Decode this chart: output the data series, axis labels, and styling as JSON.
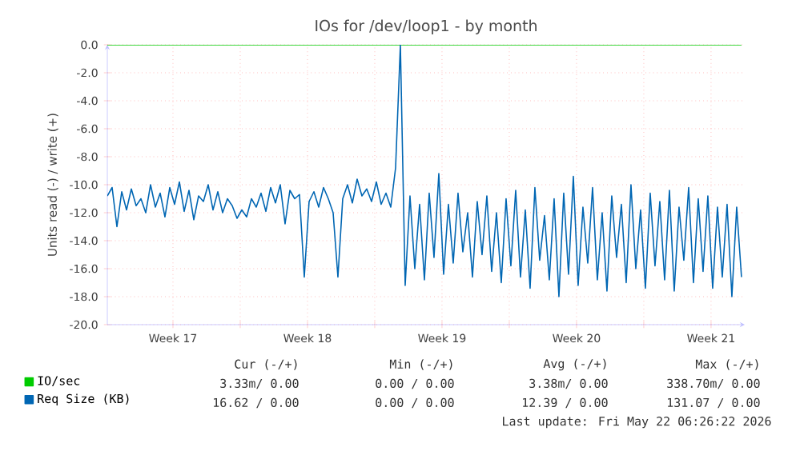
{
  "chart_data": {
    "type": "line",
    "title": "IOs for /dev/loop1 - by month",
    "ylabel": "Units read (-) / write (+)",
    "xlim": [
      "2026-04-20T02:00",
      "2026-05-23T06:05"
    ],
    "ylim": [
      -20,
      0
    ],
    "xticks": [
      {
        "value": "2026-04-23T12:00",
        "label": "Week 17"
      },
      {
        "value": "2026-04-27T00:00",
        "label": null
      },
      {
        "value": "2026-04-30T12:00",
        "label": "Week 18"
      },
      {
        "value": "2026-05-04T00:00",
        "label": null
      },
      {
        "value": "2026-05-07T12:00",
        "label": "Week 19"
      },
      {
        "value": "2026-05-11T00:00",
        "label": null
      },
      {
        "value": "2026-05-14T12:00",
        "label": "Week 20"
      },
      {
        "value": "2026-05-18T00:00",
        "label": null
      },
      {
        "value": "2026-05-21T12:00",
        "label": "Week 21"
      }
    ],
    "yticks": [
      {
        "value": -20,
        "label": "-20.0"
      },
      {
        "value": -18,
        "label": "-18.0"
      },
      {
        "value": -16,
        "label": "-16.0"
      },
      {
        "value": -14,
        "label": "-14.0"
      },
      {
        "value": -12,
        "label": "-12.0"
      },
      {
        "value": -10,
        "label": "-10.0"
      },
      {
        "value": -8,
        "label": "-8.0"
      },
      {
        "value": -6,
        "label": "-6.0"
      },
      {
        "value": -4,
        "label": "-4.0"
      },
      {
        "value": -2,
        "label": "-2.0"
      },
      {
        "value": 0,
        "label": "0.0"
      }
    ],
    "grid": true,
    "legend": "bottom",
    "x": [
      "2026-04-20T02:00",
      "2026-04-20T08:00",
      "2026-04-20T14:00",
      "2026-04-20T20:00",
      "2026-04-21T02:00",
      "2026-04-21T08:00",
      "2026-04-21T14:00",
      "2026-04-21T20:00",
      "2026-04-22T02:00",
      "2026-04-22T08:00",
      "2026-04-22T14:00",
      "2026-04-22T20:00",
      "2026-04-23T02:00",
      "2026-04-23T08:00",
      "2026-04-23T14:00",
      "2026-04-23T20:00",
      "2026-04-24T02:00",
      "2026-04-24T08:00",
      "2026-04-24T14:00",
      "2026-04-24T20:00",
      "2026-04-25T02:00",
      "2026-04-25T08:00",
      "2026-04-25T14:00",
      "2026-04-25T20:00",
      "2026-04-26T02:00",
      "2026-04-26T08:00",
      "2026-04-26T14:00",
      "2026-04-26T20:00",
      "2026-04-27T02:00",
      "2026-04-27T08:00",
      "2026-04-27T14:00",
      "2026-04-27T20:00",
      "2026-04-28T02:00",
      "2026-04-28T08:00",
      "2026-04-28T14:00",
      "2026-04-28T20:00",
      "2026-04-29T02:00",
      "2026-04-29T08:00",
      "2026-04-29T14:00",
      "2026-04-29T20:00",
      "2026-04-30T02:00",
      "2026-04-30T08:00",
      "2026-04-30T14:00",
      "2026-04-30T20:00",
      "2026-05-01T02:00",
      "2026-05-01T08:00",
      "2026-05-01T14:00",
      "2026-05-01T20:00",
      "2026-05-02T02:00",
      "2026-05-02T08:00",
      "2026-05-02T14:00",
      "2026-05-02T20:00",
      "2026-05-03T02:00",
      "2026-05-03T08:00",
      "2026-05-03T14:00",
      "2026-05-03T20:00",
      "2026-05-04T02:00",
      "2026-05-04T08:00",
      "2026-05-04T14:00",
      "2026-05-04T20:00",
      "2026-05-05T02:00",
      "2026-05-05T08:00",
      "2026-05-05T14:00",
      "2026-05-05T20:00",
      "2026-05-06T02:00",
      "2026-05-06T08:00",
      "2026-05-06T14:00",
      "2026-05-06T20:00",
      "2026-05-07T02:00",
      "2026-05-07T08:00",
      "2026-05-07T14:00",
      "2026-05-07T20:00",
      "2026-05-08T02:00",
      "2026-05-08T08:00",
      "2026-05-08T14:00",
      "2026-05-08T20:00",
      "2026-05-09T02:00",
      "2026-05-09T08:00",
      "2026-05-09T14:00",
      "2026-05-09T20:00",
      "2026-05-10T02:00",
      "2026-05-10T08:00",
      "2026-05-10T14:00",
      "2026-05-10T20:00",
      "2026-05-11T02:00",
      "2026-05-11T08:00",
      "2026-05-11T14:00",
      "2026-05-11T20:00",
      "2026-05-12T02:00",
      "2026-05-12T08:00",
      "2026-05-12T14:00",
      "2026-05-12T20:00",
      "2026-05-13T02:00",
      "2026-05-13T08:00",
      "2026-05-13T14:00",
      "2026-05-13T20:00",
      "2026-05-14T02:00",
      "2026-05-14T08:00",
      "2026-05-14T14:00",
      "2026-05-14T20:00",
      "2026-05-15T02:00",
      "2026-05-15T08:00",
      "2026-05-15T14:00",
      "2026-05-15T20:00",
      "2026-05-16T02:00",
      "2026-05-16T08:00",
      "2026-05-16T14:00",
      "2026-05-16T20:00",
      "2026-05-17T02:00",
      "2026-05-17T08:00",
      "2026-05-17T14:00",
      "2026-05-17T20:00",
      "2026-05-18T02:00",
      "2026-05-18T08:00",
      "2026-05-18T14:00",
      "2026-05-18T20:00",
      "2026-05-19T02:00",
      "2026-05-19T08:00",
      "2026-05-19T14:00",
      "2026-05-19T20:00",
      "2026-05-20T02:00",
      "2026-05-20T08:00",
      "2026-05-20T14:00",
      "2026-05-20T20:00",
      "2026-05-21T02:00",
      "2026-05-21T08:00",
      "2026-05-21T14:00",
      "2026-05-21T20:00",
      "2026-05-22T02:00",
      "2026-05-22T08:00",
      "2026-05-22T14:00",
      "2026-05-22T20:00",
      "2026-05-23T02:00"
    ],
    "series": [
      {
        "name": "IO/sec",
        "color": "#00cc00",
        "x": [
          "2026-04-20T02:00",
          "2026-05-23T02:00"
        ],
        "values": [
          0,
          0
        ]
      },
      {
        "name": "Req Size (KB)",
        "color": "#0066b3",
        "values": [
          -10.8,
          -10.2,
          -13.0,
          -10.5,
          -11.8,
          -10.3,
          -11.5,
          -11.0,
          -12.0,
          -10.0,
          -11.6,
          -10.6,
          -12.3,
          -10.2,
          -11.4,
          -9.8,
          -11.9,
          -10.4,
          -12.5,
          -10.8,
          -11.2,
          -10.0,
          -11.8,
          -10.5,
          -12.0,
          -11.0,
          -11.5,
          -12.4,
          -11.8,
          -12.3,
          -11.0,
          -11.6,
          -10.6,
          -11.9,
          -10.2,
          -11.3,
          -10.0,
          -12.8,
          -10.4,
          -11.0,
          -10.7,
          -16.6,
          -11.2,
          -10.5,
          -11.6,
          -10.2,
          -11.0,
          -12.0,
          -16.6,
          -11.0,
          -10.0,
          -11.3,
          -9.6,
          -10.8,
          -10.3,
          -11.2,
          -9.8,
          -11.4,
          -10.6,
          -11.6,
          -8.8,
          0,
          -17.2,
          -10.8,
          -16.0,
          -11.4,
          -16.8,
          -10.6,
          -15.2,
          -9.2,
          -16.4,
          -11.4,
          -15.6,
          -10.6,
          -14.8,
          -12.0,
          -16.6,
          -11.2,
          -15.0,
          -10.8,
          -16.2,
          -12.0,
          -17.0,
          -11.0,
          -15.8,
          -10.4,
          -16.6,
          -11.8,
          -17.4,
          -10.2,
          -15.4,
          -12.2,
          -16.8,
          -11.0,
          -18.0,
          -10.6,
          -16.4,
          -9.4,
          -17.2,
          -11.6,
          -15.6,
          -10.2,
          -16.8,
          -12.0,
          -17.6,
          -10.8,
          -15.2,
          -11.4,
          -17.0,
          -10.0,
          -16.0,
          -11.8,
          -17.4,
          -10.6,
          -15.8,
          -11.2,
          -16.8,
          -10.4,
          -17.6,
          -11.6,
          -15.4,
          -10.2,
          -17.0,
          -11.0,
          -16.2,
          -10.8,
          -17.4,
          -11.6,
          -16.6,
          -11.4,
          -18.0,
          -11.6,
          -16.6
        ]
      }
    ],
    "annotations": [
      "Cur (-/+)",
      "Min (-/+)",
      "Avg (-/+)",
      "Max (-/+)",
      "3.33m/ 0.00",
      "0.00 / 0.00",
      "3.38m/ 0.00",
      "338.70m/ 0.00",
      "16.62 / 0.00",
      "0.00 / 0.00",
      "12.39 / 0.00",
      "131.07 / 0.00",
      "Last update: Fri May 22 06:26:22 2026"
    ]
  }
}
